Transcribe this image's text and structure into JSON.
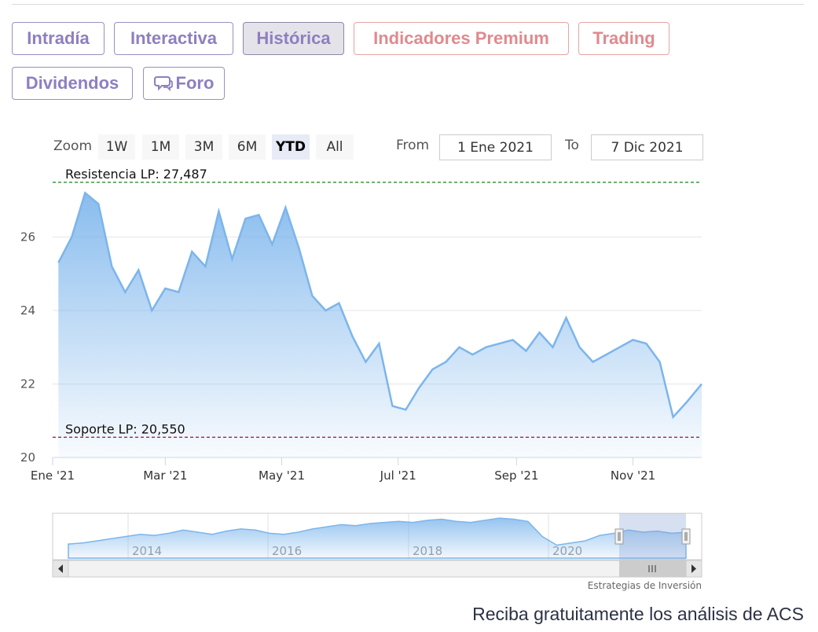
{
  "tabs": [
    {
      "label": "Intradía"
    },
    {
      "label": "Interactiva"
    },
    {
      "label": "Histórica"
    },
    {
      "label": "Indicadores Premium"
    },
    {
      "label": "Trading"
    },
    {
      "label": "Dividendos"
    },
    {
      "label": "Foro"
    }
  ],
  "range_selector": {
    "zoom_label": "Zoom",
    "buttons": [
      "1W",
      "1M",
      "3M",
      "6M",
      "YTD",
      "All"
    ],
    "selected": "YTD",
    "from_label": "From",
    "from_value": "1 Ene 2021",
    "to_label": "To",
    "to_value": "7 Dic 2021"
  },
  "chart_data": {
    "type": "area",
    "x": [
      "2021-01-04",
      "2021-01-11",
      "2021-01-18",
      "2021-01-25",
      "2021-02-01",
      "2021-02-08",
      "2021-02-15",
      "2021-02-22",
      "2021-03-01",
      "2021-03-08",
      "2021-03-15",
      "2021-03-22",
      "2021-03-29",
      "2021-04-05",
      "2021-04-12",
      "2021-04-19",
      "2021-04-26",
      "2021-05-03",
      "2021-05-10",
      "2021-05-17",
      "2021-05-24",
      "2021-05-31",
      "2021-06-07",
      "2021-06-14",
      "2021-06-21",
      "2021-06-28",
      "2021-07-05",
      "2021-07-12",
      "2021-07-19",
      "2021-07-26",
      "2021-08-02",
      "2021-08-09",
      "2021-08-16",
      "2021-08-23",
      "2021-08-30",
      "2021-09-06",
      "2021-09-13",
      "2021-09-20",
      "2021-09-27",
      "2021-10-04",
      "2021-10-11",
      "2021-10-18",
      "2021-10-25",
      "2021-11-01",
      "2021-11-08",
      "2021-11-15",
      "2021-11-22",
      "2021-11-29",
      "2021-12-07"
    ],
    "y": [
      25.3,
      26.0,
      27.2,
      26.9,
      25.2,
      24.5,
      25.1,
      24.0,
      24.6,
      24.5,
      25.6,
      25.2,
      26.7,
      25.4,
      26.5,
      26.6,
      25.8,
      26.8,
      25.7,
      24.4,
      24.0,
      24.2,
      23.3,
      22.6,
      23.1,
      21.4,
      21.3,
      21.9,
      22.4,
      22.6,
      23.0,
      22.8,
      23.0,
      23.1,
      23.2,
      22.9,
      23.4,
      23.0,
      23.8,
      23.0,
      22.6,
      22.8,
      23.0,
      23.2,
      23.1,
      22.6,
      21.1,
      21.5,
      22.0
    ],
    "xlabel": "",
    "ylabel": "",
    "ylim": [
      20,
      27.7
    ],
    "x_ticks": [
      "Ene '21",
      "Mar '21",
      "May '21",
      "Jul '21",
      "Sep '21",
      "Nov '21"
    ],
    "y_ticks": [
      "20",
      "22",
      "24",
      "26"
    ],
    "plot_lines": [
      {
        "label": "Resistencia LP: 27,487",
        "value": 27.487,
        "color": "#2e8b2e"
      },
      {
        "label": "Soporte LP: 20,550",
        "value": 20.55,
        "color": "#8b1a2e"
      }
    ],
    "grid": true,
    "series_color": "#7cb5ec"
  },
  "navigator": {
    "years": [
      "2014",
      "2016",
      "2018",
      "2020"
    ],
    "values": [
      13,
      14,
      16,
      18,
      20,
      22,
      21,
      23,
      26,
      24,
      22,
      25,
      27,
      26,
      23,
      22,
      24,
      27,
      29,
      31,
      30,
      32,
      33,
      34,
      33,
      35,
      36,
      34,
      33,
      35,
      37,
      36,
      34,
      20,
      12,
      14,
      16,
      21,
      23,
      26,
      24,
      25,
      23,
      24
    ]
  },
  "credits": "Estrategias de Inversión",
  "cta": "Reciba gratuitamente los análisis de ACS"
}
